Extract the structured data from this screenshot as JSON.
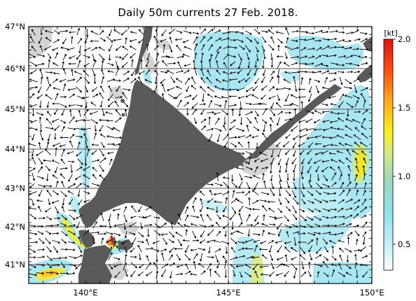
{
  "title": "Daily 50m currents 27 Feb. 2018.",
  "latitude_labels": [
    "47°N",
    "46°N",
    "45°N",
    "44°N",
    "43°N",
    "42°N",
    "41°N"
  ],
  "longitude_labels": [
    "140°E",
    "145°E",
    "150°E"
  ],
  "colorbar": {
    "unit": "[kt]",
    "tick_labels": [
      "2.0",
      "1.5",
      "1.0",
      "0.5"
    ],
    "range_kt": [
      0,
      2.0
    ],
    "stops": [
      "#ffffff",
      "#bff0f8",
      "#8fe0ee",
      "#9ad8c0",
      "#cfe88a",
      "#ffee20",
      "#ffb020",
      "#ff5010",
      "#dc1414"
    ]
  },
  "colors": {
    "land": "#5a5a5a",
    "ice": "#d4d4d4",
    "sea": "#ffffff",
    "grid": "#555555",
    "arrow": "#000000"
  }
}
